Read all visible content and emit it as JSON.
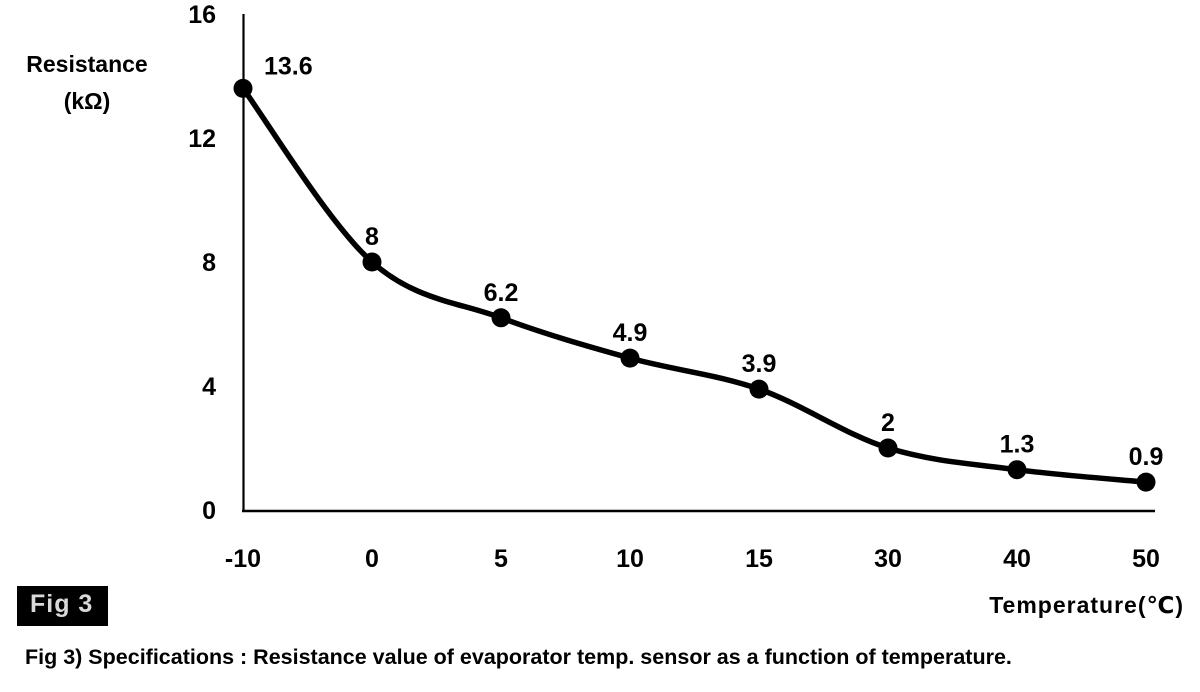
{
  "figure": {
    "badge_label": "Fig 3",
    "caption": "Fig 3) Specifications : Resistance value of evaporator temp. sensor as a function of temperature."
  },
  "chart_data": {
    "type": "line",
    "title": "",
    "xlabel": "Temperature(℃)",
    "ylabel": "Resistance (kΩ)",
    "ylabel_line1": "Resistance",
    "ylabel_line2": "(kΩ)",
    "categories": [
      "-10",
      "0",
      "5",
      "10",
      "15",
      "30",
      "40",
      "50"
    ],
    "values": [
      13.6,
      8,
      6.2,
      4.9,
      3.9,
      2,
      1.3,
      0.9
    ],
    "point_labels": [
      "13.6",
      "8",
      "6.2",
      "4.9",
      "3.9",
      "2",
      "1.3",
      "0.9"
    ],
    "y_ticks": [
      0,
      4,
      8,
      12,
      16
    ],
    "ylim": [
      0,
      16
    ],
    "x_axis_type": "categorical-even-spacing",
    "grid": false,
    "legend_position": "none",
    "marker": "filled-circle",
    "colors": {
      "ink": "#000000",
      "background": "#ffffff",
      "badge_bg": "#000000",
      "badge_text": "#d9d9d9"
    }
  }
}
